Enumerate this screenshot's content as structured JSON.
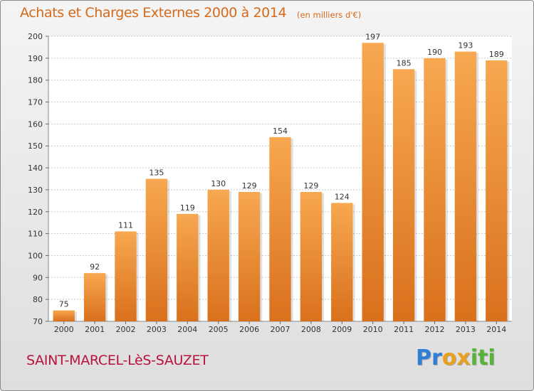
{
  "title": "Achats et Charges Externes 2000 à 2014",
  "unit_note": "(en milliers d'€)",
  "commune": "SAINT-MARCEL-LèS-SAUZET",
  "logo": {
    "letters": [
      {
        "char": "P",
        "color": "#2e7fd4"
      },
      {
        "char": "r",
        "color": "#2e7fd4"
      },
      {
        "char": "o",
        "color": "#e8a020"
      },
      {
        "char": "x",
        "color": "#e8a020"
      },
      {
        "char": "i",
        "color": "#59b33a"
      },
      {
        "char": "t",
        "color": "#59b33a"
      },
      {
        "char": "i",
        "color": "#59b33a"
      }
    ]
  },
  "colors": {
    "bar_light": "#f7a850",
    "bar_dark": "#d9701c",
    "grid": "#c8c8c8",
    "title": "#d56a1a",
    "commune": "#b8123d"
  },
  "chart_data": {
    "type": "bar",
    "categories": [
      "2000",
      "2001",
      "2002",
      "2003",
      "2004",
      "2005",
      "2006",
      "2007",
      "2008",
      "2009",
      "2010",
      "2011",
      "2012",
      "2013",
      "2014"
    ],
    "values": [
      75,
      92,
      111,
      135,
      119,
      130,
      129,
      154,
      129,
      124,
      197,
      185,
      190,
      193,
      189
    ],
    "ylim": [
      70,
      200
    ],
    "yticks": [
      70,
      80,
      90,
      100,
      110,
      120,
      130,
      140,
      150,
      160,
      170,
      180,
      190,
      200
    ],
    "grid": true,
    "data_labels": true
  }
}
